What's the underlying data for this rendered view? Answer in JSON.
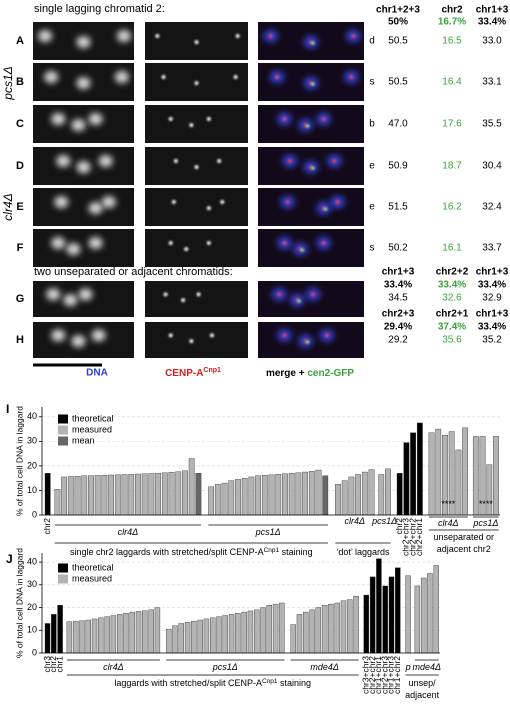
{
  "figure": {
    "header": "single lagging chromatid 2:",
    "strains": [
      "pcs1Δ",
      "clr4Δ"
    ],
    "columns": [
      "chr1+2+3",
      "chr2",
      "chr1+3"
    ],
    "theoretical": [
      "50%",
      "16.7%",
      "33.4%"
    ],
    "rows": [
      {
        "label": "A",
        "code": "d",
        "values": [
          "50.5",
          "16.5",
          "33.0"
        ]
      },
      {
        "label": "B",
        "code": "s",
        "values": [
          "50.5",
          "16.4",
          "33.1"
        ]
      },
      {
        "label": "C",
        "code": "b",
        "values": [
          "47.0",
          "17.6",
          "35.5"
        ]
      },
      {
        "label": "D",
        "code": "e",
        "values": [
          "50.9",
          "18.7",
          "30.4"
        ]
      },
      {
        "label": "E",
        "code": "e",
        "values": [
          "51.5",
          "16.2",
          "32.4"
        ]
      },
      {
        "label": "F",
        "code": "s",
        "values": [
          "50.2",
          "16.1",
          "33.7"
        ]
      }
    ],
    "subheader": "two unseparated or adjacent chromatids:",
    "pair_rows": [
      {
        "label": "G",
        "columns": [
          "chr1+3",
          "chr2+2",
          "chr1+3"
        ],
        "theoretical": [
          "33.4%",
          "33.4%",
          "33.4%"
        ],
        "values": [
          "34.5",
          "32.6",
          "32.9"
        ]
      },
      {
        "label": "H",
        "columns": [
          "chr2+3",
          "chr2+1",
          "chr1+3"
        ],
        "theoretical": [
          "29.4%",
          "37.4%",
          "33.4%"
        ],
        "values": [
          "29.2",
          "35.6",
          "35.2"
        ]
      }
    ],
    "channels": {
      "dna": "DNA",
      "cenp": "CENP-A",
      "cenp_sup": "Cnp1",
      "merge": "merge + ",
      "gfp": "cen2-GFP"
    }
  },
  "chart_data": [
    {
      "type": "bar",
      "panel": "I",
      "ylabel": "% of total cell DNA in laggard",
      "ylim": [
        0,
        44
      ],
      "yticks": [
        0,
        10,
        20,
        30,
        40
      ],
      "grid": true,
      "legend": "upper left",
      "categories": [
        "chr2",
        null,
        null,
        null,
        null,
        null,
        null,
        null,
        null,
        null,
        null,
        null,
        null,
        null,
        null,
        null,
        null,
        null,
        null,
        null,
        null,
        null,
        null,
        null,
        null,
        null,
        null,
        null,
        null,
        null,
        null,
        null,
        null,
        null,
        null,
        null,
        null,
        null,
        null,
        null,
        null,
        null,
        null,
        null,
        null,
        null,
        null,
        null,
        null,
        "chr2",
        "chr2+chr3",
        "chr2+chr2",
        "chr2+chr1",
        null,
        null,
        null,
        null,
        null,
        null,
        null,
        null,
        null,
        null
      ],
      "series": [
        {
          "name": "theoretical",
          "color": "#000000",
          "values": [
            17,
            null,
            null,
            null,
            null,
            null,
            null,
            null,
            null,
            null,
            null,
            null,
            null,
            null,
            null,
            null,
            null,
            null,
            null,
            null,
            null,
            null,
            null,
            null,
            null,
            null,
            null,
            null,
            null,
            null,
            null,
            null,
            null,
            null,
            null,
            null,
            null,
            null,
            null,
            null,
            null,
            null,
            null,
            null,
            null,
            null,
            null,
            null,
            null,
            17,
            29.5,
            33.5,
            37.5,
            null,
            null,
            null,
            null,
            null,
            null,
            null,
            null,
            null,
            null
          ]
        },
        {
          "name": "measured",
          "color": "#b3b3b3",
          "values": [
            null,
            10.5,
            15.5,
            15.7,
            15.8,
            16,
            16,
            16.1,
            16.2,
            16.3,
            16.4,
            16.5,
            16.6,
            16.7,
            16.8,
            16.9,
            17,
            17.2,
            17.4,
            17.6,
            18,
            23,
            null,
            11.5,
            12.5,
            13,
            14,
            14.5,
            15,
            15.5,
            16,
            16.2,
            16.4,
            16.6,
            16.8,
            17,
            17.2,
            17.5,
            17.8,
            18.3,
            null,
            12.5,
            14,
            15.5,
            16.5,
            17.5,
            18.5,
            16.5,
            18.8,
            null,
            null,
            null,
            null,
            33.5,
            35,
            32.5,
            34,
            26.5,
            35.5,
            32,
            32,
            20.5,
            32
          ]
        },
        {
          "name": "mean",
          "color": "#666666",
          "values": [
            null,
            null,
            null,
            null,
            null,
            null,
            null,
            null,
            null,
            null,
            null,
            null,
            null,
            null,
            null,
            null,
            null,
            null,
            null,
            null,
            null,
            null,
            17,
            null,
            null,
            null,
            null,
            null,
            null,
            null,
            null,
            null,
            null,
            null,
            null,
            null,
            null,
            null,
            null,
            null,
            16,
            null,
            null,
            null,
            null,
            null,
            null,
            null,
            null,
            null,
            null,
            null,
            null,
            null,
            null,
            null,
            null,
            null,
            null,
            null,
            null,
            null,
            null
          ]
        }
      ],
      "annotations": [
        "clr4Δ",
        "pcs1Δ",
        "clr4Δ",
        "pcs1Δ",
        "clr4Δ",
        "pcs1Δ",
        "single chr2 laggards with stretched/split CENP-A",
        "Cnp1",
        " staining",
        "‘dot’ laggards",
        "unseparated or",
        "adjacent chr2",
        "****",
        "****"
      ]
    },
    {
      "type": "bar",
      "panel": "J",
      "ylabel": "% of total cell DNA in laggard",
      "ylim": [
        0,
        44
      ],
      "yticks": [
        0,
        10,
        20,
        30,
        40
      ],
      "grid": true,
      "legend": "upper left",
      "categories": [
        "chr3",
        "chr2",
        "chr1",
        null,
        null,
        null,
        null,
        null,
        null,
        null,
        null,
        null,
        null,
        null,
        null,
        null,
        null,
        null,
        null,
        null,
        null,
        null,
        null,
        null,
        null,
        null,
        null,
        null,
        null,
        null,
        null,
        null,
        null,
        null,
        null,
        null,
        null,
        null,
        null,
        null,
        null,
        null,
        null,
        null,
        null,
        null,
        null,
        null,
        "chr3+chr3",
        "chr2+chr2",
        "chr1+chr1",
        "chr2+chr3",
        "chr1+chr3",
        "chr1+chr2",
        null,
        null,
        null,
        null,
        null
      ],
      "series": [
        {
          "name": "theoretical",
          "color": "#000000",
          "values": [
            13,
            17,
            21,
            null,
            null,
            null,
            null,
            null,
            null,
            null,
            null,
            null,
            null,
            null,
            null,
            null,
            null,
            null,
            null,
            null,
            null,
            null,
            null,
            null,
            null,
            null,
            null,
            null,
            null,
            null,
            null,
            null,
            null,
            null,
            null,
            null,
            null,
            null,
            null,
            null,
            null,
            null,
            null,
            null,
            null,
            null,
            null,
            null,
            25.5,
            33.5,
            41.5,
            29.5,
            33.5,
            37.5,
            null,
            null,
            null,
            null,
            null
          ]
        },
        {
          "name": "measured",
          "color": "#b3b3b3",
          "values": [
            null,
            null,
            null,
            13.8,
            14,
            14.2,
            14.5,
            15,
            15.5,
            16,
            16.5,
            17,
            17.5,
            18,
            18.3,
            18.6,
            19,
            20,
            10.5,
            12,
            13,
            13.5,
            14,
            14.5,
            15,
            15.5,
            16,
            16.5,
            17,
            17.5,
            18,
            18.5,
            19,
            20,
            21,
            21.5,
            22,
            12.5,
            17,
            18,
            19,
            20,
            21,
            21.5,
            22,
            23,
            23.5,
            25,
            null,
            null,
            null,
            null,
            null,
            null,
            34,
            29.5,
            33,
            35,
            38.5
          ]
        }
      ],
      "annotations": [
        "clr4Δ",
        "pcs1Δ",
        "mde4Δ",
        "laggards with stretched/split CENP-A",
        "Cnp1",
        " staining",
        "p",
        "mde4Δ",
        "unsep/",
        "adjacent"
      ]
    }
  ]
}
